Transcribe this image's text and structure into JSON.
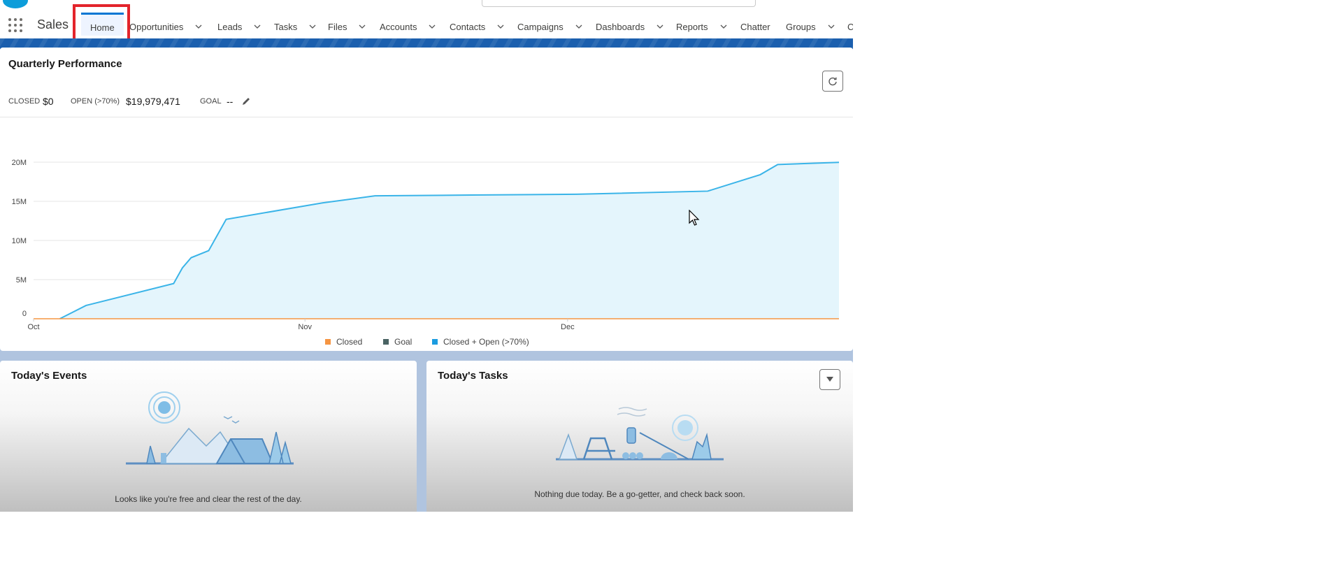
{
  "topbar": {
    "app_name": "Sales",
    "nav": [
      {
        "label": "Home",
        "dropdown": false,
        "active": true
      },
      {
        "label": "Opportunities",
        "dropdown": true
      },
      {
        "label": "Leads",
        "dropdown": true
      },
      {
        "label": "Tasks",
        "dropdown": true
      },
      {
        "label": "Files",
        "dropdown": true
      },
      {
        "label": "Accounts",
        "dropdown": true
      },
      {
        "label": "Contacts",
        "dropdown": true
      },
      {
        "label": "Campaigns",
        "dropdown": true
      },
      {
        "label": "Dashboards",
        "dropdown": true
      },
      {
        "label": "Reports",
        "dropdown": true
      },
      {
        "label": "Chatter",
        "dropdown": false
      },
      {
        "label": "Groups",
        "dropdown": true
      },
      {
        "label": "C",
        "dropdown": false
      }
    ]
  },
  "performance": {
    "title": "Quarterly Performance",
    "closed_label": "CLOSED",
    "closed_value": "$0",
    "open_label": "OPEN (>70%)",
    "open_value": "$19,979,471",
    "goal_label": "GOAL",
    "goal_value": "--",
    "icons": {
      "refresh": "refresh-icon",
      "edit": "pencil-icon"
    }
  },
  "chart_data": {
    "type": "area",
    "x_ticks": [
      "Oct",
      "Nov",
      "Dec"
    ],
    "y_ticks": [
      "0",
      "5M",
      "10M",
      "15M",
      "20M"
    ],
    "ylim": [
      0,
      20000000
    ],
    "xlim_days": [
      0,
      92
    ],
    "grid": true,
    "legend": [
      "Closed",
      "Goal",
      "Closed + Open (>70%)"
    ],
    "legend_position": "bottom",
    "series": [
      {
        "name": "Closed",
        "color": "#f59542",
        "x": [
          0,
          92
        ],
        "y": [
          0,
          0
        ]
      },
      {
        "name": "Closed + Open (>70%)",
        "color": "#3ab4e8",
        "fill": "#e4f5fc",
        "x": [
          3,
          6,
          16,
          17,
          18,
          20,
          22,
          33,
          39,
          50,
          62,
          77,
          83,
          85,
          92
        ],
        "y": [
          0,
          1700000,
          4500000,
          6500000,
          7800000,
          8700000,
          12700000,
          14800000,
          15700000,
          15800000,
          15900000,
          16300000,
          18400000,
          19700000,
          19979471
        ]
      }
    ],
    "legend_colors": {
      "Closed": "#f59542",
      "Goal": "#4a6363",
      "Closed + Open (>70%)": "#1b9ce0"
    }
  },
  "events": {
    "title": "Today's Events",
    "empty_message": "Looks like you're free and clear the rest of the day."
  },
  "tasks": {
    "title": "Today's Tasks",
    "empty_message": "Nothing due today. Be a go-getter, and check back soon."
  }
}
